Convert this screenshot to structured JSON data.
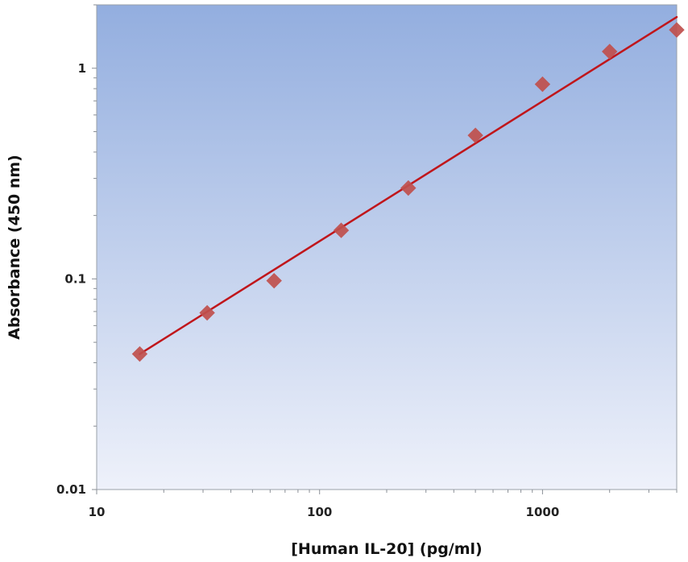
{
  "chart_data": {
    "type": "scatter",
    "title": "",
    "xlabel": "[Human IL-20] (pg/ml)",
    "ylabel": "Absorbance (450 nm)",
    "x_scale": "log",
    "y_scale": "log",
    "xlim": [
      10,
      4000
    ],
    "ylim": [
      0.01,
      2
    ],
    "x_ticks": [
      10,
      100,
      1000
    ],
    "x_tick_labels": [
      "10",
      "100",
      "1000"
    ],
    "y_ticks": [
      0.01,
      0.1,
      1
    ],
    "y_tick_labels": [
      "0.01",
      "0.1",
      "1"
    ],
    "grid": false,
    "legend": "none",
    "series": [
      {
        "marker": "diamond",
        "color": "#c0504d",
        "points": [
          {
            "x": 15.6,
            "y": 0.044
          },
          {
            "x": 31.3,
            "y": 0.069
          },
          {
            "x": 62.5,
            "y": 0.098
          },
          {
            "x": 125,
            "y": 0.17
          },
          {
            "x": 250,
            "y": 0.27
          },
          {
            "x": 500,
            "y": 0.48
          },
          {
            "x": 1000,
            "y": 0.84
          },
          {
            "x": 2000,
            "y": 1.2
          },
          {
            "x": 4000,
            "y": 1.52
          }
        ]
      }
    ],
    "fit_line": {
      "color": "#c0161b",
      "points": [
        {
          "x": 15.6,
          "y": 0.044
        },
        {
          "x": 4000,
          "y": 1.75
        }
      ]
    },
    "plot_background": {
      "top": "#93aedf",
      "bottom": "#eef1fa",
      "border": "#9aa0a8"
    }
  }
}
